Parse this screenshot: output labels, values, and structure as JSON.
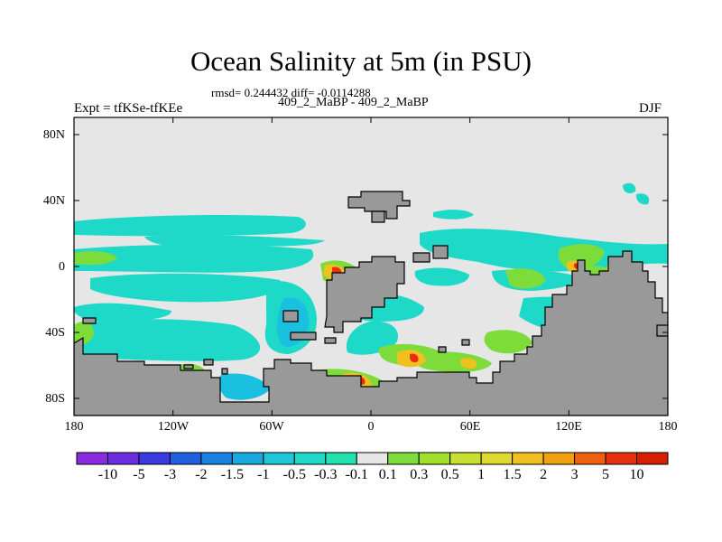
{
  "title": "Ocean Salinity at 5m (in PSU)",
  "stats": "rmsd= 0.244432 diff= -0.0114288",
  "subtitle": "409_2_MaBP - 409_2_MaBP",
  "left_label": "Expt = tfKSe-tfKEe",
  "right_label": "DJF",
  "lat_ticks": [
    "80N",
    "40N",
    "0",
    "40S",
    "80S"
  ],
  "lon_ticks": [
    "180",
    "120W",
    "60W",
    "0",
    "60E",
    "120E",
    "180"
  ],
  "colorbar": {
    "labels": [
      "-10",
      "-5",
      "-3",
      "-2",
      "-1.5",
      "-1",
      "-0.5",
      "-0.3",
      "-0.1",
      "0.1",
      "0.3",
      "0.5",
      "1",
      "1.5",
      "2",
      "3",
      "5",
      "10"
    ],
    "colors": [
      "#8a2be2",
      "#6a2ee0",
      "#3a3ae0",
      "#1f5fe0",
      "#1a80e0",
      "#19a8e0",
      "#1ec6d8",
      "#1fd9c8",
      "#22e3b0",
      "#e6e6e6",
      "#7ddc3a",
      "#9ee02a",
      "#c8e030",
      "#e0d830",
      "#f0c020",
      "#f0a010",
      "#ee6010",
      "#e83010",
      "#d81e00"
    ]
  },
  "colors": {
    "land": "#999999",
    "no_change": "#e6e6e6",
    "freshening": "#1fd9c8",
    "freshening_strong": "#19c0e0",
    "saltier_weak": "#7ddc3a",
    "saltier_mid": "#f0c020",
    "saltier_strong": "#e83010"
  }
}
